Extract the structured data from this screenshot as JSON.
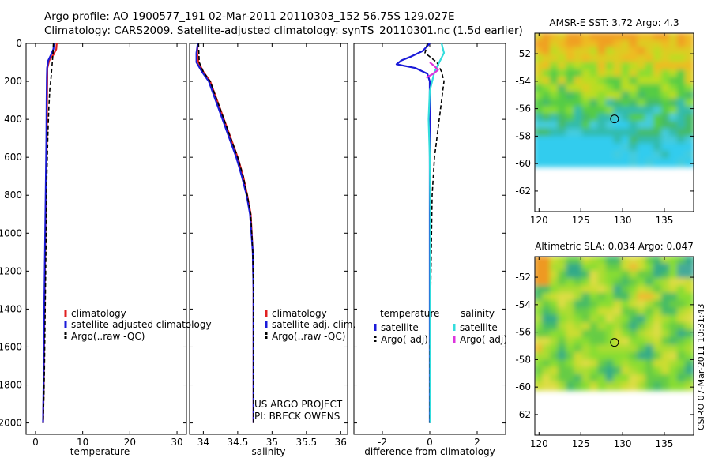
{
  "header": {
    "line1": "Argo profile: AO 1900577_191 02-Mar-2011 20110303_152 56.75S 129.027E",
    "line2": "Climatology: CARS2009. Satellite-adjusted climatology: synTS_20110301.nc (1.5d earlier)"
  },
  "side_note": "CSIRO 07-Mar-2011 10:31:43",
  "colors": {
    "climatology": "#e02020",
    "satellite": "#1a1ad8",
    "argo": "#000000",
    "salinity_satellite": "#33dddd",
    "salinity_argo": "#dd33dd"
  },
  "chart_data": [
    {
      "type": "line",
      "xlabel": "temperature",
      "xlim": [
        -2,
        32
      ],
      "xticks": [
        0,
        10,
        20,
        30
      ],
      "ylim": [
        2060,
        0
      ],
      "yticks": [
        0,
        200,
        400,
        600,
        800,
        1000,
        1200,
        1400,
        1600,
        1800,
        2000
      ],
      "legend": [
        "climatology",
        "satellite-adjusted climatology",
        "Argo(..raw -QC)"
      ],
      "series": [
        {
          "name": "climatology",
          "color": "#e02020",
          "dash": false,
          "x": [
            4.5,
            4.4,
            3.8,
            2.9,
            2.5,
            2.5,
            2.45,
            2.4,
            2.3,
            2.15,
            2.05,
            1.95,
            1.85,
            1.75,
            1.6
          ],
          "y": [
            0,
            30,
            60,
            90,
            130,
            180,
            300,
            500,
            700,
            900,
            1100,
            1300,
            1500,
            1800,
            2000
          ]
        },
        {
          "name": "satellite-adjusted climatology",
          "color": "#1a1ad8",
          "dash": false,
          "x": [
            3.9,
            3.8,
            3.3,
            2.7,
            2.45,
            2.4,
            2.35,
            2.3,
            2.2,
            2.1,
            2.0,
            1.9,
            1.8,
            1.7,
            1.6
          ],
          "y": [
            0,
            30,
            60,
            90,
            130,
            180,
            300,
            500,
            700,
            900,
            1100,
            1300,
            1500,
            1800,
            2000
          ]
        },
        {
          "name": "Argo(..raw -QC)",
          "color": "#000000",
          "dash": true,
          "x": [
            3.8,
            3.7,
            3.5,
            3.3,
            3.0,
            2.8,
            2.6,
            2.4,
            2.3,
            2.2,
            2.1,
            2.0,
            1.9,
            1.8,
            1.6
          ],
          "y": [
            0,
            60,
            120,
            180,
            250,
            350,
            500,
            700,
            900,
            1100,
            1300,
            1500,
            1700,
            1850,
            2000
          ]
        }
      ]
    },
    {
      "type": "line",
      "xlabel": "salinity",
      "xlim": [
        33.8,
        36.1
      ],
      "xticks": [
        34,
        34.5,
        35,
        35.5,
        36
      ],
      "ylim": [
        2060,
        0
      ],
      "yticks": [
        0,
        200,
        400,
        600,
        800,
        1000,
        1200,
        1400,
        1600,
        1800,
        2000
      ],
      "legend": [
        "climatology",
        "satellite adj. clim.",
        "Argo(..raw -QC)"
      ],
      "annotation": [
        "US ARGO PROJECT",
        "PI: BRECK OWENS"
      ],
      "series": [
        {
          "name": "climatology",
          "color": "#e02020",
          "dash": false,
          "x": [
            33.92,
            33.91,
            33.93,
            34.0,
            34.1,
            34.2,
            34.3,
            34.4,
            34.5,
            34.58,
            34.64,
            34.69,
            34.72,
            34.73,
            34.73,
            34.73
          ],
          "y": [
            0,
            50,
            100,
            150,
            200,
            300,
            400,
            500,
            600,
            700,
            800,
            900,
            1100,
            1300,
            1600,
            2000
          ]
        },
        {
          "name": "satellite adj. clim.",
          "color": "#1a1ad8",
          "dash": false,
          "x": [
            33.92,
            33.9,
            33.9,
            33.98,
            34.08,
            34.18,
            34.28,
            34.38,
            34.48,
            34.56,
            34.63,
            34.68,
            34.72,
            34.73,
            34.73,
            34.73
          ],
          "y": [
            0,
            50,
            100,
            150,
            200,
            300,
            400,
            500,
            600,
            700,
            800,
            900,
            1100,
            1300,
            1600,
            2000
          ]
        },
        {
          "name": "Argo(..raw -QC)",
          "color": "#000000",
          "dash": true,
          "x": [
            33.93,
            33.94,
            34.0,
            34.1,
            34.2,
            34.3,
            34.4,
            34.5,
            34.58,
            34.64,
            34.69,
            34.72,
            34.73,
            34.73
          ],
          "y": [
            0,
            100,
            150,
            200,
            300,
            400,
            500,
            600,
            700,
            800,
            900,
            1100,
            1300,
            2000
          ]
        }
      ]
    },
    {
      "type": "line",
      "xlabel": "difference from climatology",
      "xlim": [
        -3.2,
        3.2
      ],
      "xticks": [
        -2,
        0,
        2
      ],
      "ylim": [
        2060,
        0
      ],
      "yticks": [
        0,
        200,
        400,
        600,
        800,
        1000,
        1200,
        1400,
        1600,
        1800,
        2000
      ],
      "legend_groups": [
        {
          "title": "temperature",
          "items": [
            "satellite",
            "Argo(-adj)"
          ]
        },
        {
          "title": "salinity",
          "items": [
            "satellite",
            "Argo(-adj)"
          ]
        }
      ],
      "series": [
        {
          "name": "temperature satellite",
          "color": "#1a1ad8",
          "dash": false,
          "x": [
            0.0,
            -0.3,
            -0.8,
            -1.2,
            -1.4,
            -0.6,
            -0.1,
            0.0,
            0.0,
            0.0,
            0.0,
            0.0,
            0.0
          ],
          "y": [
            0,
            40,
            70,
            90,
            110,
            130,
            160,
            200,
            400,
            800,
            1200,
            1600,
            2000
          ]
        },
        {
          "name": "temperature Argo(-adj)",
          "color": "#000000",
          "dash": true,
          "x": [
            -0.1,
            -0.2,
            0.3,
            0.5,
            0.6,
            0.5,
            0.35,
            0.2,
            0.1,
            0.05,
            0.0,
            0.0
          ],
          "y": [
            0,
            50,
            100,
            150,
            200,
            300,
            450,
            600,
            800,
            1200,
            1600,
            2000
          ]
        },
        {
          "name": "salinity satellite",
          "color": "#33dddd",
          "dash": false,
          "x": [
            0.5,
            0.6,
            0.4,
            0.2,
            0.0,
            -0.05,
            0.0,
            0.02,
            0.02,
            0.02,
            0.02
          ],
          "y": [
            0,
            50,
            100,
            150,
            250,
            400,
            600,
            900,
            1200,
            1600,
            2000
          ]
        },
        {
          "name": "salinity Argo(-adj)",
          "color": "#dd33dd",
          "dash": false,
          "x": [
            0.0,
            0.2,
            0.35,
            0.15,
            -0.15
          ],
          "y": [
            100,
            120,
            140,
            160,
            180
          ]
        }
      ]
    },
    {
      "type": "heatmap",
      "title": "AMSR-E SST: 3.72 Argo: 4.3",
      "xlim": [
        119.5,
        138.5
      ],
      "xticks": [
        120,
        125,
        130,
        135
      ],
      "ylim": [
        -63.5,
        -50.5
      ],
      "yticks": [
        -52,
        -54,
        -56,
        -58,
        -60,
        -62
      ],
      "data_extent_lat": [
        -60.2,
        -50.5
      ],
      "marker": {
        "lon": 129.03,
        "lat": -56.75
      }
    },
    {
      "type": "heatmap",
      "title": "Altimetric SLA: 0.034 Argo: 0.047",
      "xlim": [
        119.5,
        138.5
      ],
      "xticks": [
        120,
        125,
        130,
        135
      ],
      "ylim": [
        -63.5,
        -50.5
      ],
      "yticks": [
        -52,
        -54,
        -56,
        -58,
        -60,
        -62
      ],
      "data_extent_lat": [
        -60.2,
        -50.5
      ],
      "marker": {
        "lon": 129.03,
        "lat": -56.75
      }
    }
  ]
}
